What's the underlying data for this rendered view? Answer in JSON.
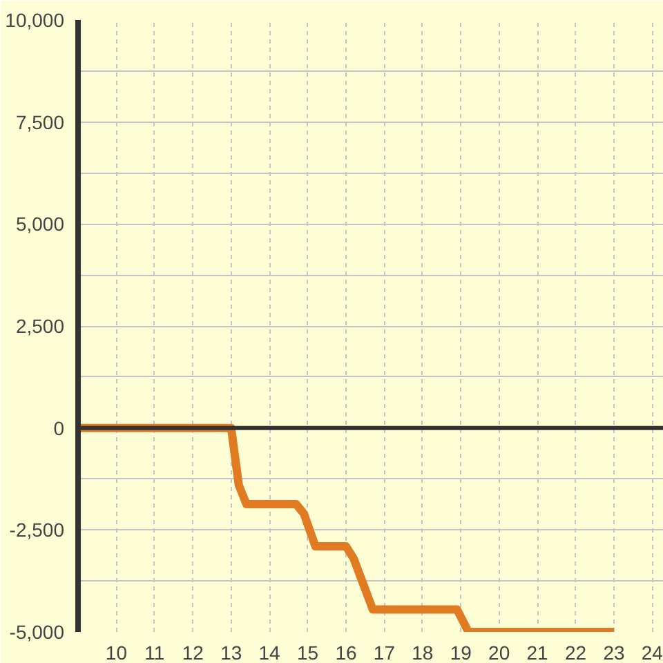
{
  "chart_data": {
    "type": "line",
    "series": [
      {
        "color": "#e07b22",
        "x": [
          9,
          13,
          13.2,
          13.4,
          14.7,
          14.9,
          15.2,
          16,
          16.2,
          16.5,
          16.7,
          18.9,
          19.2,
          23
        ],
        "values": [
          0,
          0,
          -1400,
          -1870,
          -1870,
          -2100,
          -2900,
          -2900,
          -3200,
          -3950,
          -4450,
          -4450,
          -5000,
          -5000
        ]
      }
    ],
    "xlim": [
      9,
      24.3
    ],
    "ylim": [
      -5000,
      10000
    ],
    "xticks": [
      10,
      11,
      12,
      13,
      14,
      15,
      16,
      17,
      18,
      19,
      20,
      21,
      22,
      23,
      24
    ],
    "yticks": [
      {
        "value": -5000,
        "label": "-5,000"
      },
      {
        "value": -3750,
        "label": null
      },
      {
        "value": -2500,
        "label": "-2,500"
      },
      {
        "value": -1250,
        "label": null
      },
      0,
      {
        "value": 1250,
        "label": null
      },
      {
        "value": 2500,
        "label": "2,500"
      },
      {
        "value": 3750,
        "label": null
      },
      {
        "value": 5000,
        "label": "5,000"
      },
      {
        "value": 6250,
        "label": null
      },
      {
        "value": 7500,
        "label": "7,500"
      },
      {
        "value": 8750,
        "label": null
      },
      {
        "value": 10000,
        "label": "10,000"
      }
    ],
    "ref_lines": [
      {
        "axis": "y",
        "value": 0,
        "color": "#333333"
      }
    ],
    "grid": true,
    "marker": "none",
    "line_style": "solid"
  }
}
